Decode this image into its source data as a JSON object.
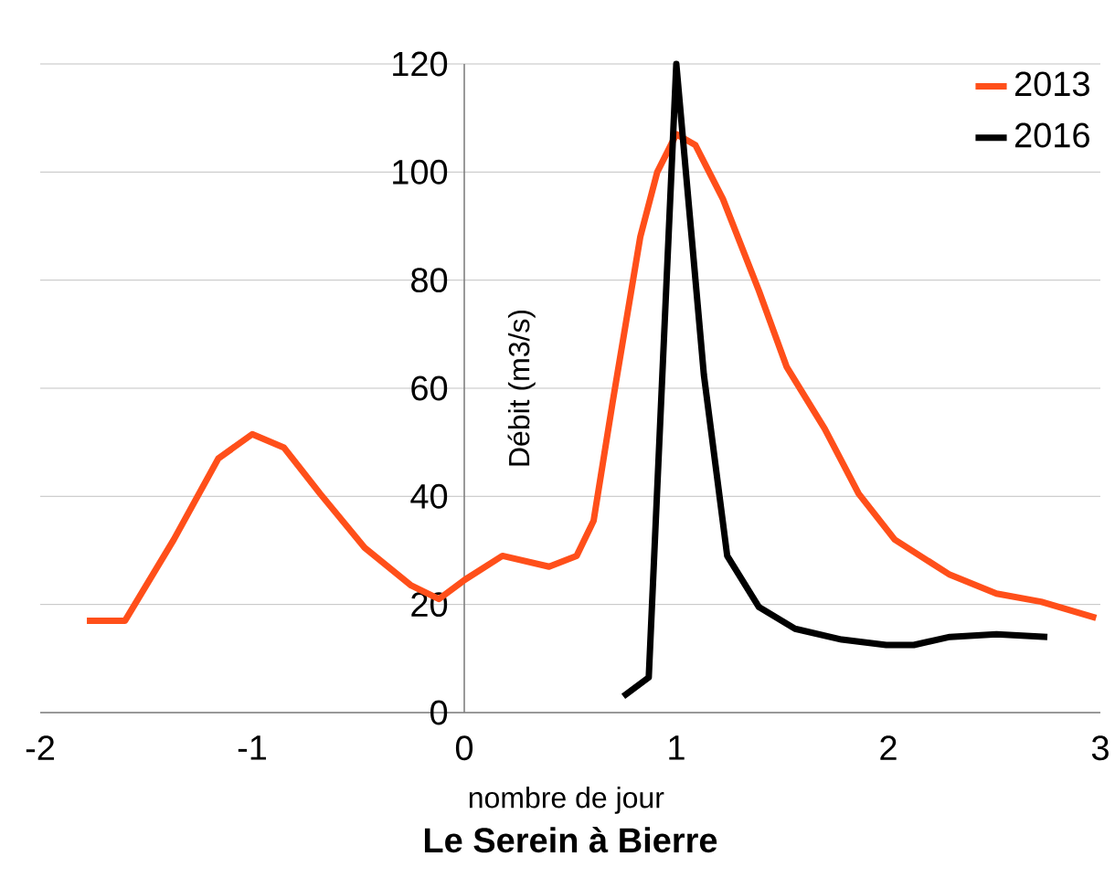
{
  "chart_data": {
    "type": "line",
    "title": "Le Serein à Bierre",
    "xlabel": "nombre de jour",
    "ylabel": "Débit (m3/s)",
    "xlim": [
      -2,
      3
    ],
    "xticks": [
      -2,
      -1,
      0,
      1,
      2,
      3
    ],
    "ylim": [
      0,
      120
    ],
    "yticks": [
      0,
      20,
      40,
      60,
      80,
      100,
      120
    ],
    "grid": "y",
    "legend": "top right",
    "series": [
      {
        "name": "2013",
        "color": "#ff4f1a",
        "x": [
          -1.78,
          -1.6,
          -1.37,
          -1.16,
          -1.0,
          -0.85,
          -0.68,
          -0.47,
          -0.25,
          -0.12,
          0,
          0.18,
          0.4,
          0.53,
          0.61,
          0.7,
          0.83,
          0.91,
          1.0,
          1.09,
          1.22,
          1.39,
          1.52,
          1.7,
          1.86,
          2.03,
          2.29,
          2.51,
          2.72,
          2.98
        ],
        "values": [
          17,
          17,
          32,
          47,
          51.5,
          49,
          40.5,
          30.5,
          23.5,
          21,
          24.5,
          29,
          27,
          29,
          35.5,
          57.5,
          88,
          100,
          107,
          105,
          95,
          78,
          64,
          52.5,
          40.5,
          32,
          25.5,
          22,
          20.5,
          17.5
        ]
      },
      {
        "name": "2016",
        "color": "#000000",
        "x": [
          0.75,
          0.87,
          1.0,
          1.13,
          1.24,
          1.39,
          1.56,
          1.78,
          1.99,
          2.12,
          2.29,
          2.51,
          2.75
        ],
        "values": [
          3,
          6.5,
          120,
          62.5,
          29,
          19.5,
          15.5,
          13.5,
          12.5,
          12.5,
          14,
          14.5,
          14
        ]
      }
    ]
  }
}
